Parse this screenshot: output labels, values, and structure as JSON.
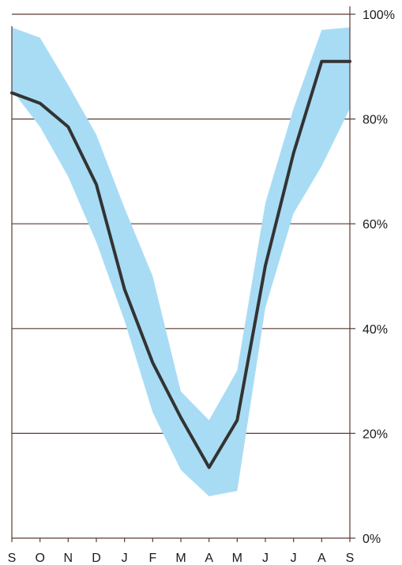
{
  "chart_data": {
    "type": "line",
    "title": "",
    "xlabel": "",
    "ylabel": "",
    "x": [
      "S",
      "O",
      "N",
      "D",
      "J",
      "F",
      "M",
      "A",
      "M",
      "J",
      "J",
      "A",
      "S"
    ],
    "ylim": [
      0,
      100
    ],
    "yticks": [
      0,
      20,
      40,
      60,
      80,
      100
    ],
    "ytick_labels": [
      "0%",
      "20%",
      "40%",
      "60%",
      "80%",
      "100%"
    ],
    "y_axis_side": "right",
    "grid": "horizontal",
    "legend": "none",
    "series": [
      {
        "values": [
          85,
          83,
          78.5,
          67.5,
          47.5,
          33.5,
          23,
          13.5,
          22.5,
          52,
          73.5,
          91,
          91
        ],
        "color": "#333333"
      }
    ],
    "band": {
      "upper": [
        97.5,
        95.5,
        86.5,
        77,
        63,
        50,
        28,
        22.5,
        32,
        64,
        82,
        97,
        97.5
      ],
      "lower": [
        85.5,
        78.5,
        69,
        56.5,
        41.5,
        24,
        13,
        8,
        9,
        44,
        62,
        71,
        82
      ],
      "color": "#a8dcf5"
    }
  }
}
